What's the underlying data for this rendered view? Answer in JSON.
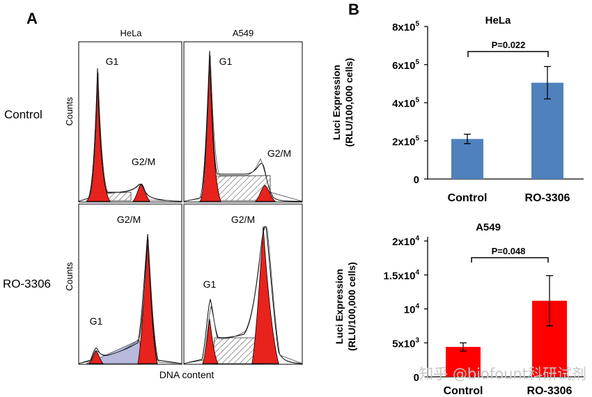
{
  "panel_a": {
    "label": "A",
    "columns": [
      "HeLa",
      "A549"
    ],
    "rows": [
      "Control",
      "RO-3306"
    ],
    "y_label": "Counts",
    "x_label": "DNA content",
    "peaks": {
      "hela_control": [
        "G1",
        "G2/M"
      ],
      "a549_control": [
        "G1",
        "G2/M"
      ],
      "hela_ro": [
        "G2/M",
        "G1"
      ],
      "a549_ro": [
        "G2/M",
        "G1"
      ]
    }
  },
  "panel_b": {
    "label": "B",
    "ylabel_line1": "Luci Expression",
    "ylabel_line2": "(RLU/100,000 cells)"
  },
  "chart_data": [
    {
      "type": "bar",
      "title": "HeLa",
      "categories": [
        "Control",
        "RO-3306"
      ],
      "values": [
        210000,
        505000
      ],
      "errors": [
        25000,
        85000
      ],
      "ylim": [
        0,
        800000
      ],
      "yticks": [
        0,
        200000,
        400000,
        600000,
        800000
      ],
      "ytick_labels": [
        {
          "base": "0",
          "sup": ""
        },
        {
          "base": "2x10",
          "sup": "5"
        },
        {
          "base": "4x10",
          "sup": "5"
        },
        {
          "base": "6x10",
          "sup": "5"
        },
        {
          "base": "8x10",
          "sup": "5"
        }
      ],
      "ylabel": "Luci Expression (RLU/100,000 cells)",
      "xlabel": "",
      "annotation": "P=0.022",
      "color": "#4f81bd"
    },
    {
      "type": "bar",
      "title": "A549",
      "categories": [
        "Control",
        "RO-3306"
      ],
      "values": [
        4400,
        11200
      ],
      "errors": [
        600,
        3700
      ],
      "ylim": [
        0,
        20000
      ],
      "yticks": [
        0,
        5000,
        10000,
        15000,
        20000
      ],
      "ytick_labels": [
        {
          "base": "0",
          "sup": ""
        },
        {
          "base": "5x10",
          "sup": "3"
        },
        {
          "base": "10",
          "sup": "4"
        },
        {
          "base": "1.5x10",
          "sup": "4"
        },
        {
          "base": "2x10",
          "sup": "4"
        }
      ],
      "ylabel": "Luci Expression (RLU/100,000 cells)",
      "xlabel": "",
      "annotation": "P=0.048",
      "color": "#ff0000"
    }
  ],
  "watermark": "知乎 @biofount科研试剂"
}
